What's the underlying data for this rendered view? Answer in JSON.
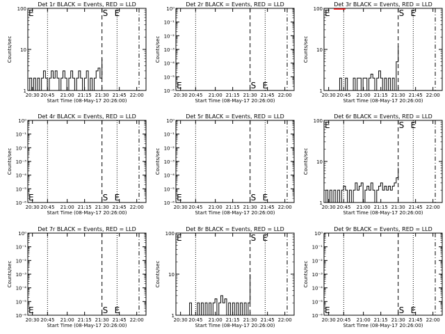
{
  "xticks": [
    "20:30",
    "20:45",
    "21:00",
    "21:15",
    "21:30",
    "21:45",
    "22:00"
  ],
  "xlabel": "Start Time (08-May-17 20:26:00)",
  "ylabel": "Counts/sec",
  "colors": {
    "events": "#000000",
    "lld": "#ff0000"
  },
  "markers": {
    "S": "S",
    "E": "E"
  },
  "chart_data": [
    {
      "type": "line",
      "title": "Det 1r BLACK = Events, RED = LLD",
      "scale": "log",
      "ylim": [
        1,
        100
      ],
      "yticks": [
        "1",
        "10",
        "100"
      ],
      "events": [
        [
          0,
          1
        ],
        [
          2,
          2
        ],
        [
          4,
          1
        ],
        [
          6,
          2
        ],
        [
          8,
          1
        ],
        [
          10,
          2
        ],
        [
          12,
          1
        ],
        [
          14,
          2
        ],
        [
          16,
          3
        ],
        [
          18,
          2
        ],
        [
          20,
          1
        ],
        [
          22,
          2
        ],
        [
          24,
          3
        ],
        [
          26,
          2
        ],
        [
          28,
          3
        ],
        [
          30,
          2
        ],
        [
          32,
          1
        ],
        [
          34,
          2
        ],
        [
          36,
          3
        ],
        [
          38,
          2
        ],
        [
          40,
          1
        ],
        [
          42,
          2
        ],
        [
          44,
          3
        ],
        [
          46,
          2
        ],
        [
          48,
          1
        ],
        [
          50,
          2
        ],
        [
          52,
          3
        ],
        [
          54,
          2
        ],
        [
          56,
          1
        ],
        [
          58,
          2
        ],
        [
          60,
          3
        ],
        [
          62,
          1
        ],
        [
          64,
          2
        ],
        [
          66,
          1
        ],
        [
          68,
          2
        ],
        [
          70,
          3
        ],
        [
          72,
          3.5
        ],
        [
          74,
          2
        ],
        [
          76,
          6
        ]
      ],
      "lld": [],
      "markerPos": {
        "S": 76,
        "E": 107
      },
      "textCorner": "top-left"
    },
    {
      "type": "line",
      "title": "Det 2r BLACK = Events, RED = LLD",
      "scale": "log",
      "ylim": [
        1e-06,
        1
      ],
      "yticks": [
        "10⁻⁶",
        "10⁻⁵",
        "10⁻⁴",
        "10⁻³",
        "10⁻²",
        "10⁻¹",
        "10⁰"
      ],
      "events": [],
      "lld": [],
      "markerPos": {
        "S": 76,
        "E": 107
      },
      "textCorner": "bottom-left"
    },
    {
      "type": "line",
      "title": "Det 3r BLACK = Events, RED = LLD",
      "scale": "log",
      "ylim": [
        1,
        100
      ],
      "yticks": [
        "1",
        "10",
        "100"
      ],
      "events": [
        [
          14,
          1
        ],
        [
          16,
          2
        ],
        [
          18,
          1
        ],
        [
          22,
          2
        ],
        [
          24,
          1
        ],
        [
          30,
          2
        ],
        [
          32,
          1
        ],
        [
          34,
          2
        ],
        [
          38,
          1
        ],
        [
          40,
          2
        ],
        [
          44,
          1
        ],
        [
          46,
          2
        ],
        [
          48,
          2.5
        ],
        [
          50,
          2
        ],
        [
          52,
          1
        ],
        [
          54,
          2
        ],
        [
          56,
          3
        ],
        [
          58,
          2
        ],
        [
          60,
          1
        ],
        [
          62,
          2
        ],
        [
          64,
          1
        ],
        [
          66,
          2
        ],
        [
          68,
          1
        ],
        [
          70,
          2
        ],
        [
          72,
          1
        ],
        [
          74,
          5
        ],
        [
          76,
          12
        ]
      ],
      "lld": [
        [
          10,
          100
        ],
        [
          22,
          100
        ]
      ],
      "markerPos": {
        "S": 76,
        "E": 107
      },
      "textCorner": "top-left"
    },
    {
      "type": "line",
      "title": "Det 4r BLACK = Events, RED = LLD",
      "scale": "log",
      "ylim": [
        1e-06,
        1
      ],
      "yticks": [
        "10⁻⁶",
        "10⁻⁵",
        "10⁻⁴",
        "10⁻³",
        "10⁻²",
        "10⁻¹",
        "10⁰"
      ],
      "events": [],
      "lld": [],
      "markerPos": {
        "S": 76,
        "E": 107
      },
      "textCorner": "bottom-left"
    },
    {
      "type": "line",
      "title": "Det 5r BLACK = Events, RED = LLD",
      "scale": "log",
      "ylim": [
        1e-06,
        1
      ],
      "yticks": [
        "10⁻⁶",
        "10⁻⁵",
        "10⁻⁴",
        "10⁻³",
        "10⁻²",
        "10⁻¹",
        "10⁰"
      ],
      "events": [],
      "lld": [],
      "markerPos": {
        "S": 76,
        "E": 107
      },
      "textCorner": "bottom-left"
    },
    {
      "type": "line",
      "title": "Det 6r BLACK = Events, RED = LLD",
      "scale": "log",
      "ylim": [
        1,
        100
      ],
      "yticks": [
        "1",
        "10",
        "100"
      ],
      "events": [
        [
          0,
          1
        ],
        [
          2,
          2
        ],
        [
          4,
          1
        ],
        [
          6,
          2
        ],
        [
          8,
          1
        ],
        [
          10,
          2
        ],
        [
          12,
          1
        ],
        [
          14,
          2
        ],
        [
          16,
          1
        ],
        [
          18,
          2
        ],
        [
          20,
          2.5
        ],
        [
          22,
          2
        ],
        [
          24,
          1
        ],
        [
          26,
          2
        ],
        [
          28,
          1
        ],
        [
          30,
          2
        ],
        [
          32,
          3
        ],
        [
          34,
          2
        ],
        [
          36,
          2.5
        ],
        [
          38,
          3
        ],
        [
          40,
          1
        ],
        [
          42,
          2
        ],
        [
          44,
          2.5
        ],
        [
          46,
          2
        ],
        [
          48,
          3
        ],
        [
          50,
          2
        ],
        [
          52,
          1
        ],
        [
          54,
          2
        ],
        [
          56,
          2.5
        ],
        [
          58,
          3
        ],
        [
          60,
          2
        ],
        [
          62,
          2.5
        ],
        [
          64,
          2
        ],
        [
          66,
          2.5
        ],
        [
          68,
          2
        ],
        [
          70,
          2.5
        ],
        [
          72,
          3
        ],
        [
          74,
          4
        ],
        [
          76,
          7
        ]
      ],
      "lld": [],
      "markerPos": {
        "S": 76,
        "E": 107
      },
      "textCorner": "top-left"
    },
    {
      "type": "line",
      "title": "Det 7r BLACK = Events, RED = LLD",
      "scale": "log",
      "ylim": [
        1e-06,
        1
      ],
      "yticks": [
        "10⁻⁶",
        "10⁻⁵",
        "10⁻⁴",
        "10⁻³",
        "10⁻²",
        "10⁻¹",
        "10⁰"
      ],
      "events": [],
      "lld": [],
      "markerPos": {
        "S": 76,
        "E": 107
      },
      "textCorner": "bottom-left"
    },
    {
      "type": "line",
      "title": "Det 8r BLACK = Events, RED = LLD",
      "scale": "log",
      "ylim": [
        1,
        100
      ],
      "yticks": [
        "1",
        "10",
        "100"
      ],
      "events": [
        [
          12,
          1
        ],
        [
          14,
          2
        ],
        [
          16,
          1
        ],
        [
          22,
          2
        ],
        [
          24,
          1
        ],
        [
          26,
          2
        ],
        [
          28,
          1
        ],
        [
          30,
          2
        ],
        [
          32,
          1
        ],
        [
          34,
          2
        ],
        [
          36,
          1
        ],
        [
          38,
          2
        ],
        [
          40,
          2.5
        ],
        [
          42,
          1
        ],
        [
          44,
          2
        ],
        [
          46,
          3
        ],
        [
          48,
          2
        ],
        [
          50,
          2.5
        ],
        [
          52,
          1
        ],
        [
          54,
          2
        ],
        [
          56,
          1
        ],
        [
          58,
          2
        ],
        [
          60,
          1
        ],
        [
          62,
          2
        ],
        [
          64,
          1
        ],
        [
          66,
          2
        ],
        [
          68,
          1
        ],
        [
          70,
          2
        ],
        [
          72,
          1
        ],
        [
          74,
          2
        ],
        [
          76,
          10
        ]
      ],
      "lld": [],
      "markerPos": {
        "S": 76,
        "E": 107
      },
      "textCorner": "top-left"
    },
    {
      "type": "line",
      "title": "Det 9r BLACK = Events, RED = LLD",
      "scale": "log",
      "ylim": [
        1e-06,
        1
      ],
      "yticks": [
        "10⁻⁶",
        "10⁻⁵",
        "10⁻⁴",
        "10⁻³",
        "10⁻²",
        "10⁻¹",
        "10⁰"
      ],
      "events": [],
      "lld": [],
      "markerPos": {
        "S": 76,
        "E": 107
      },
      "textCorner": "bottom-left"
    }
  ]
}
